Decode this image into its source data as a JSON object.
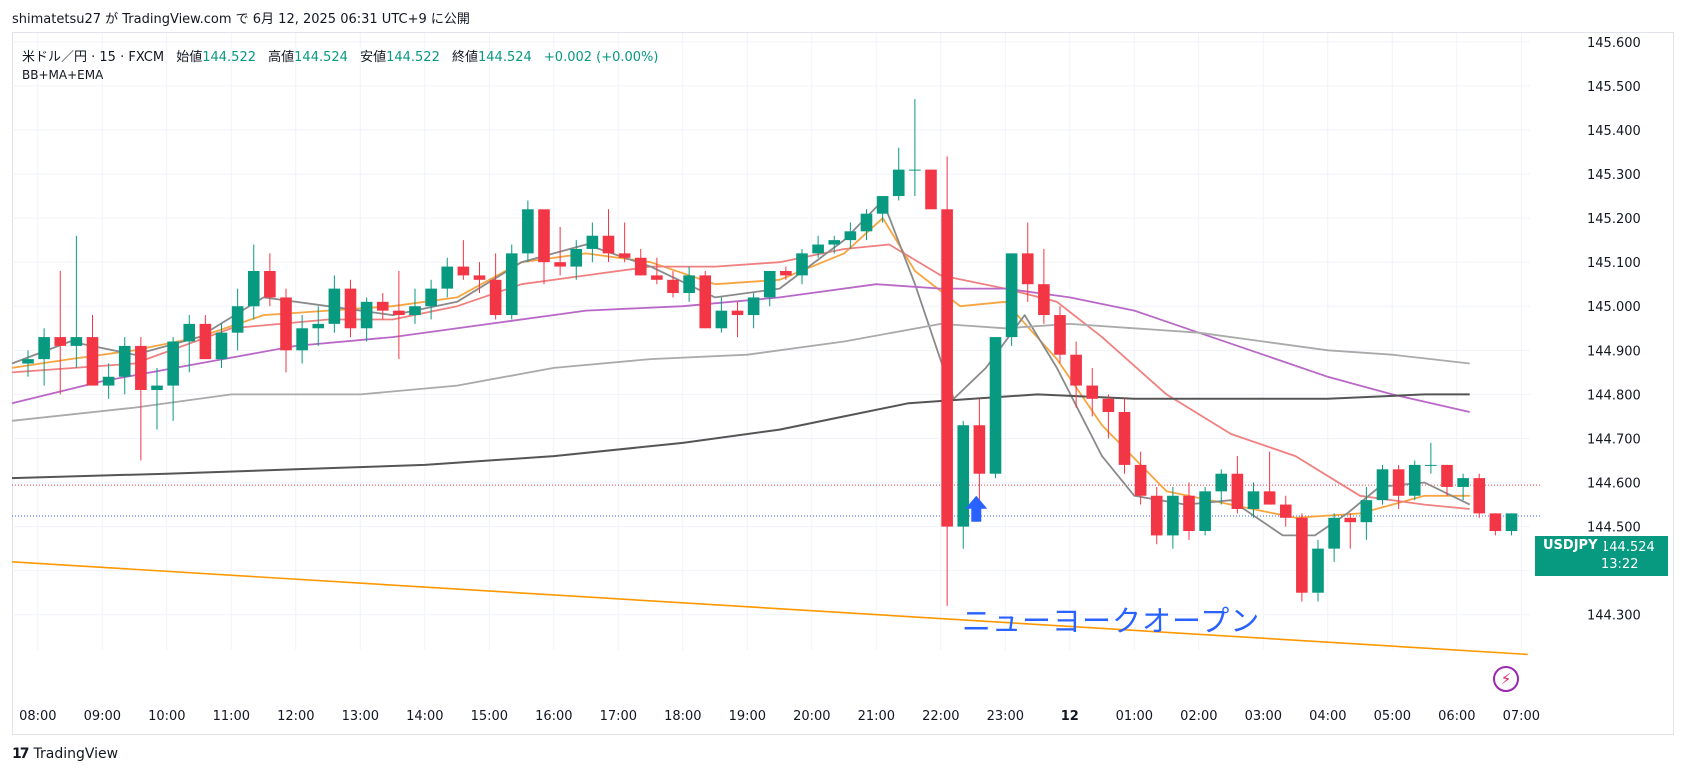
{
  "header": {
    "publish_info": "shimatetsu27 が TradingView.com で 6月 12, 2025 06:31 UTC+9 に公開"
  },
  "legend": {
    "symbol": "米ドル／円 · 15 · FXCM",
    "open_label": "始値",
    "open": "144.522",
    "high_label": "高値",
    "high": "144.524",
    "low_label": "安値",
    "low": "144.522",
    "close_label": "終値",
    "close": "144.524",
    "change": "+0.002 (+0.00%)",
    "indicators": "BB+MA+EMA"
  },
  "price_tag": {
    "symbol": "USDJPY",
    "price": "144.524",
    "countdown": "13:22"
  },
  "annotation": {
    "text": "ニューヨークオープン"
  },
  "footer": {
    "brand": "TradingView",
    "brand_mark": "17"
  },
  "colors": {
    "up": "#089981",
    "down": "#f23645",
    "accent_blue": "#2962ff",
    "trendline": "#ff9800"
  },
  "chart_data": {
    "type": "candlestick",
    "ylim": [
      144.22,
      145.62
    ],
    "yticks": [
      "145.600",
      "145.500",
      "145.400",
      "145.300",
      "145.200",
      "145.100",
      "145.000",
      "144.900",
      "144.800",
      "144.700",
      "144.600",
      "144.500",
      "144.400",
      "144.300"
    ],
    "xticks": [
      "08:00",
      "09:00",
      "10:00",
      "11:00",
      "12:00",
      "13:00",
      "14:00",
      "15:00",
      "16:00",
      "17:00",
      "18:00",
      "19:00",
      "20:00",
      "21:00",
      "22:00",
      "23:00",
      "12",
      "01:00",
      "02:00",
      "03:00",
      "04:00",
      "05:00",
      "06:00",
      "07:00"
    ],
    "x_start_hour": 7.6,
    "candles": [
      [
        144.87,
        144.9,
        144.84,
        144.88
      ],
      [
        144.88,
        144.95,
        144.82,
        144.93
      ],
      [
        144.93,
        145.08,
        144.8,
        144.91
      ],
      [
        144.91,
        145.16,
        144.86,
        144.93
      ],
      [
        144.93,
        144.98,
        144.82,
        144.82
      ],
      [
        144.82,
        144.87,
        144.79,
        144.84
      ],
      [
        144.84,
        144.93,
        144.8,
        144.91
      ],
      [
        144.91,
        144.93,
        144.65,
        144.81
      ],
      [
        144.81,
        144.86,
        144.72,
        144.82
      ],
      [
        144.82,
        144.93,
        144.74,
        144.92
      ],
      [
        144.92,
        144.98,
        144.85,
        144.96
      ],
      [
        144.96,
        144.98,
        144.88,
        144.88
      ],
      [
        144.88,
        144.96,
        144.86,
        144.94
      ],
      [
        144.94,
        145.04,
        144.9,
        145.0
      ],
      [
        145.0,
        145.14,
        144.97,
        145.08
      ],
      [
        145.08,
        145.12,
        145.0,
        145.02
      ],
      [
        145.02,
        145.04,
        144.85,
        144.9
      ],
      [
        144.9,
        144.98,
        144.87,
        144.95
      ],
      [
        144.95,
        145.0,
        144.91,
        144.96
      ],
      [
        144.96,
        145.07,
        144.94,
        145.04
      ],
      [
        145.04,
        145.06,
        144.93,
        144.95
      ],
      [
        144.95,
        145.02,
        144.92,
        145.01
      ],
      [
        145.01,
        145.03,
        144.97,
        144.99
      ],
      [
        144.99,
        145.08,
        144.88,
        144.98
      ],
      [
        144.98,
        145.04,
        144.96,
        145.0
      ],
      [
        145.0,
        145.06,
        144.97,
        145.04
      ],
      [
        145.04,
        145.11,
        145.02,
        145.09
      ],
      [
        145.09,
        145.15,
        145.06,
        145.07
      ],
      [
        145.07,
        145.1,
        145.03,
        145.06
      ],
      [
        145.06,
        145.12,
        144.97,
        144.98
      ],
      [
        144.98,
        145.14,
        144.97,
        145.12
      ],
      [
        145.12,
        145.24,
        145.1,
        145.22
      ],
      [
        145.22,
        145.21,
        145.05,
        145.1
      ],
      [
        145.1,
        145.18,
        145.07,
        145.09
      ],
      [
        145.09,
        145.15,
        145.06,
        145.13
      ],
      [
        145.13,
        145.19,
        145.1,
        145.16
      ],
      [
        145.16,
        145.22,
        145.1,
        145.12
      ],
      [
        145.12,
        145.19,
        145.1,
        145.11
      ],
      [
        145.11,
        145.13,
        145.07,
        145.07
      ],
      [
        145.07,
        145.11,
        145.05,
        145.06
      ],
      [
        145.06,
        145.08,
        145.02,
        145.03
      ],
      [
        145.03,
        145.09,
        145.01,
        145.07
      ],
      [
        145.07,
        145.08,
        144.95,
        144.95
      ],
      [
        144.95,
        145.02,
        144.94,
        144.99
      ],
      [
        144.99,
        145.01,
        144.93,
        144.98
      ],
      [
        144.98,
        145.03,
        144.95,
        145.02
      ],
      [
        145.02,
        145.08,
        145.0,
        145.08
      ],
      [
        145.08,
        145.09,
        145.06,
        145.07
      ],
      [
        145.07,
        145.13,
        145.05,
        145.12
      ],
      [
        145.12,
        145.16,
        145.11,
        145.14
      ],
      [
        145.14,
        145.16,
        145.12,
        145.15
      ],
      [
        145.15,
        145.19,
        145.13,
        145.17
      ],
      [
        145.17,
        145.22,
        145.15,
        145.21
      ],
      [
        145.21,
        145.25,
        145.19,
        145.25
      ],
      [
        145.25,
        145.36,
        145.24,
        145.31
      ],
      [
        145.31,
        145.47,
        145.25,
        145.31
      ],
      [
        145.31,
        145.31,
        145.22,
        145.22
      ],
      [
        145.22,
        145.34,
        144.32,
        144.5
      ],
      [
        144.5,
        144.74,
        144.45,
        144.73
      ],
      [
        144.73,
        144.79,
        144.55,
        144.62
      ],
      [
        144.62,
        144.93,
        144.61,
        144.93
      ],
      [
        144.93,
        145.12,
        144.91,
        145.12
      ],
      [
        145.12,
        145.19,
        145.01,
        145.05
      ],
      [
        145.05,
        145.13,
        144.96,
        144.98
      ],
      [
        144.98,
        145.0,
        144.87,
        144.89
      ],
      [
        144.89,
        144.92,
        144.77,
        144.82
      ],
      [
        144.82,
        144.86,
        144.75,
        144.79
      ],
      [
        144.79,
        144.8,
        144.7,
        144.76
      ],
      [
        144.76,
        144.79,
        144.62,
        144.64
      ],
      [
        144.64,
        144.67,
        144.55,
        144.57
      ],
      [
        144.57,
        144.59,
        144.46,
        144.48
      ],
      [
        144.48,
        144.59,
        144.45,
        144.57
      ],
      [
        144.57,
        144.6,
        144.47,
        144.49
      ],
      [
        144.49,
        144.59,
        144.48,
        144.58
      ],
      [
        144.58,
        144.63,
        144.55,
        144.62
      ],
      [
        144.62,
        144.66,
        144.53,
        144.54
      ],
      [
        144.54,
        144.6,
        144.52,
        144.58
      ],
      [
        144.58,
        144.67,
        144.55,
        144.55
      ],
      [
        144.55,
        144.57,
        144.5,
        144.52
      ],
      [
        144.52,
        144.53,
        144.33,
        144.35
      ],
      [
        144.35,
        144.47,
        144.33,
        144.45
      ],
      [
        144.45,
        144.53,
        144.42,
        144.52
      ],
      [
        144.52,
        144.53,
        144.45,
        144.51
      ],
      [
        144.51,
        144.59,
        144.47,
        144.56
      ],
      [
        144.56,
        144.64,
        144.55,
        144.63
      ],
      [
        144.63,
        144.64,
        144.54,
        144.57
      ],
      [
        144.57,
        144.65,
        144.56,
        144.64
      ],
      [
        144.64,
        144.69,
        144.62,
        144.64
      ],
      [
        144.64,
        144.64,
        144.57,
        144.59
      ],
      [
        144.59,
        144.62,
        144.56,
        144.61
      ],
      [
        144.61,
        144.62,
        144.52,
        144.53
      ],
      [
        144.53,
        144.53,
        144.48,
        144.49
      ],
      [
        144.49,
        144.53,
        144.48,
        144.53
      ]
    ],
    "overlays": [
      {
        "color": "#f7a541",
        "points": [
          [
            7.6,
            144.86
          ],
          [
            8.5,
            144.88
          ],
          [
            9.5,
            144.9
          ],
          [
            10.5,
            144.93
          ],
          [
            11.5,
            144.98
          ],
          [
            12.5,
            144.99
          ],
          [
            13.5,
            145.0
          ],
          [
            14.5,
            145.02
          ],
          [
            15.5,
            145.1
          ],
          [
            16.5,
            145.12
          ],
          [
            17.5,
            145.1
          ],
          [
            18.5,
            145.05
          ],
          [
            19.5,
            145.06
          ],
          [
            20.5,
            145.12
          ],
          [
            21.1,
            145.2
          ],
          [
            21.6,
            145.08
          ],
          [
            22.3,
            145.0
          ],
          [
            23.0,
            145.01
          ],
          [
            23.8,
            144.88
          ],
          [
            24.5,
            144.73
          ],
          [
            25.5,
            144.58
          ],
          [
            26.5,
            144.55
          ],
          [
            27.5,
            144.52
          ],
          [
            28.5,
            144.53
          ],
          [
            29.5,
            144.57
          ],
          [
            30.2,
            144.57
          ]
        ]
      },
      {
        "color": "#f08080",
        "points": [
          [
            7.6,
            144.85
          ],
          [
            9.5,
            144.87
          ],
          [
            11.0,
            144.95
          ],
          [
            12.5,
            144.97
          ],
          [
            13.5,
            144.97
          ],
          [
            14.5,
            145.0
          ],
          [
            15.5,
            145.05
          ],
          [
            16.5,
            145.07
          ],
          [
            17.5,
            145.09
          ],
          [
            18.5,
            145.09
          ],
          [
            19.5,
            145.1
          ],
          [
            20.5,
            145.13
          ],
          [
            21.2,
            145.14
          ],
          [
            22.0,
            145.07
          ],
          [
            23.0,
            145.04
          ],
          [
            23.8,
            145.01
          ],
          [
            24.5,
            144.93
          ],
          [
            25.5,
            144.8
          ],
          [
            26.5,
            144.71
          ],
          [
            27.5,
            144.66
          ],
          [
            28.5,
            144.57
          ],
          [
            29.5,
            144.55
          ],
          [
            30.2,
            144.54
          ]
        ]
      },
      {
        "color": "#8a8a8a",
        "points": [
          [
            7.6,
            144.87
          ],
          [
            8.5,
            144.92
          ],
          [
            9.5,
            144.89
          ],
          [
            10.5,
            144.93
          ],
          [
            11.5,
            145.02
          ],
          [
            12.5,
            145.0
          ],
          [
            13.5,
            144.98
          ],
          [
            14.5,
            145.01
          ],
          [
            15.5,
            145.1
          ],
          [
            16.5,
            145.14
          ],
          [
            17.5,
            145.09
          ],
          [
            18.5,
            145.02
          ],
          [
            19.5,
            145.04
          ],
          [
            20.5,
            145.15
          ],
          [
            21.1,
            145.24
          ],
          [
            21.6,
            145.05
          ],
          [
            22.2,
            144.79
          ],
          [
            22.7,
            144.86
          ],
          [
            23.3,
            144.98
          ],
          [
            23.8,
            144.86
          ],
          [
            24.5,
            144.66
          ],
          [
            25.0,
            144.57
          ],
          [
            25.8,
            144.55
          ],
          [
            26.5,
            144.56
          ],
          [
            27.3,
            144.48
          ],
          [
            27.8,
            144.48
          ],
          [
            28.3,
            144.53
          ],
          [
            28.8,
            144.59
          ],
          [
            29.5,
            144.6
          ],
          [
            30.2,
            144.55
          ]
        ]
      },
      {
        "color": "#ba68c8",
        "points": [
          [
            7.6,
            144.78
          ],
          [
            9.0,
            144.83
          ],
          [
            10.5,
            144.87
          ],
          [
            12.0,
            144.91
          ],
          [
            13.5,
            144.93
          ],
          [
            15.0,
            144.96
          ],
          [
            16.5,
            144.99
          ],
          [
            18.0,
            145.0
          ],
          [
            19.5,
            145.02
          ],
          [
            21.0,
            145.05
          ],
          [
            22.0,
            145.04
          ],
          [
            23.0,
            145.04
          ],
          [
            24.0,
            145.02
          ],
          [
            25.0,
            144.99
          ],
          [
            26.0,
            144.94
          ],
          [
            27.0,
            144.89
          ],
          [
            28.0,
            144.84
          ],
          [
            29.0,
            144.8
          ],
          [
            30.2,
            144.76
          ]
        ]
      },
      {
        "color": "#aaaaaa",
        "points": [
          [
            7.6,
            144.74
          ],
          [
            9.5,
            144.77
          ],
          [
            11.0,
            144.8
          ],
          [
            13.0,
            144.8
          ],
          [
            14.5,
            144.82
          ],
          [
            16.0,
            144.86
          ],
          [
            17.5,
            144.88
          ],
          [
            19.0,
            144.89
          ],
          [
            20.5,
            144.92
          ],
          [
            22.0,
            144.96
          ],
          [
            23.0,
            144.95
          ],
          [
            24.0,
            144.96
          ],
          [
            25.0,
            144.95
          ],
          [
            26.0,
            144.94
          ],
          [
            27.0,
            144.92
          ],
          [
            28.0,
            144.9
          ],
          [
            29.0,
            144.89
          ],
          [
            30.2,
            144.87
          ]
        ]
      },
      {
        "color": "#555555",
        "width": 2,
        "points": [
          [
            7.6,
            144.61
          ],
          [
            10.0,
            144.62
          ],
          [
            12.0,
            144.63
          ],
          [
            14.0,
            144.64
          ],
          [
            16.0,
            144.66
          ],
          [
            18.0,
            144.69
          ],
          [
            19.5,
            144.72
          ],
          [
            20.5,
            144.75
          ],
          [
            21.5,
            144.78
          ],
          [
            22.5,
            144.79
          ],
          [
            23.5,
            144.8
          ],
          [
            25.0,
            144.79
          ],
          [
            26.5,
            144.79
          ],
          [
            28.0,
            144.79
          ],
          [
            29.5,
            144.8
          ],
          [
            30.2,
            144.8
          ]
        ]
      }
    ],
    "trendline": [
      [
        7.6,
        144.42
      ],
      [
        31.1,
        144.21
      ]
    ],
    "hlines": [
      {
        "y": 144.594,
        "color": "#f23645",
        "style": "dotted"
      },
      {
        "y": 144.524,
        "color": "#2962ff",
        "style": "dotted"
      }
    ],
    "arrow": {
      "x": 22.55,
      "y": 144.52
    }
  }
}
